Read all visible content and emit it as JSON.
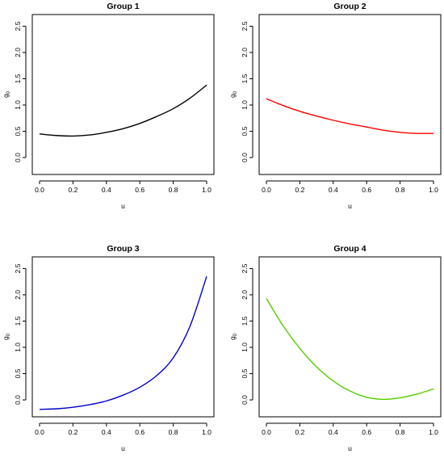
{
  "chart_data": [
    {
      "type": "line",
      "title": "Group 1",
      "xlabel": "u",
      "ylabel": "g",
      "ylabel_subscript": "0",
      "xlim": [
        0,
        1
      ],
      "ylim": [
        -0.2,
        2.6
      ],
      "xticks": [
        "0.0",
        "0.2",
        "0.4",
        "0.6",
        "0.8",
        "1.0"
      ],
      "yticks": [
        "0.0",
        "0.5",
        "1.0",
        "1.5",
        "2.0",
        "2.5"
      ],
      "color": "#000000",
      "x": [
        0.0,
        0.1,
        0.2,
        0.3,
        0.4,
        0.5,
        0.6,
        0.7,
        0.8,
        0.9,
        1.0
      ],
      "y": [
        0.45,
        0.42,
        0.41,
        0.43,
        0.48,
        0.55,
        0.65,
        0.78,
        0.93,
        1.13,
        1.38
      ]
    },
    {
      "type": "line",
      "title": "Group 2",
      "xlabel": "u",
      "ylabel": "g",
      "ylabel_subscript": "0",
      "xlim": [
        0,
        1
      ],
      "ylim": [
        -0.2,
        2.6
      ],
      "xticks": [
        "0.0",
        "0.2",
        "0.4",
        "0.6",
        "0.8",
        "1.0"
      ],
      "yticks": [
        "0.0",
        "0.5",
        "1.0",
        "1.5",
        "2.0",
        "2.5"
      ],
      "color": "#ff0000",
      "x": [
        0.0,
        0.1,
        0.2,
        0.3,
        0.4,
        0.5,
        0.6,
        0.7,
        0.8,
        0.9,
        1.0
      ],
      "y": [
        1.12,
        0.99,
        0.88,
        0.79,
        0.71,
        0.64,
        0.58,
        0.52,
        0.48,
        0.46,
        0.46
      ]
    },
    {
      "type": "line",
      "title": "Group 3",
      "xlabel": "u",
      "ylabel": "g",
      "ylabel_subscript": "0",
      "xlim": [
        0,
        1
      ],
      "ylim": [
        -0.2,
        2.6
      ],
      "xticks": [
        "0.0",
        "0.2",
        "0.4",
        "0.6",
        "0.8",
        "1.0"
      ],
      "yticks": [
        "0.0",
        "0.5",
        "1.0",
        "1.5",
        "2.0",
        "2.5"
      ],
      "color": "#0000cc",
      "x": [
        0.0,
        0.1,
        0.2,
        0.3,
        0.4,
        0.5,
        0.6,
        0.7,
        0.8,
        0.9,
        1.0
      ],
      "y": [
        -0.18,
        -0.17,
        -0.14,
        -0.09,
        -0.02,
        0.09,
        0.24,
        0.46,
        0.8,
        1.4,
        2.35
      ]
    },
    {
      "type": "line",
      "title": "Group 4",
      "xlabel": "u",
      "ylabel": "g",
      "ylabel_subscript": "0",
      "xlim": [
        0,
        1
      ],
      "ylim": [
        -0.2,
        2.6
      ],
      "xticks": [
        "0.0",
        "0.2",
        "0.4",
        "0.6",
        "0.8",
        "1.0"
      ],
      "yticks": [
        "0.0",
        "0.5",
        "1.0",
        "1.5",
        "2.0",
        "2.5"
      ],
      "color": "#55cc00",
      "x": [
        0.0,
        0.1,
        0.2,
        0.3,
        0.4,
        0.5,
        0.6,
        0.7,
        0.8,
        0.9,
        1.0
      ],
      "y": [
        1.93,
        1.41,
        0.98,
        0.63,
        0.36,
        0.17,
        0.05,
        0.01,
        0.04,
        0.11,
        0.21
      ]
    }
  ]
}
